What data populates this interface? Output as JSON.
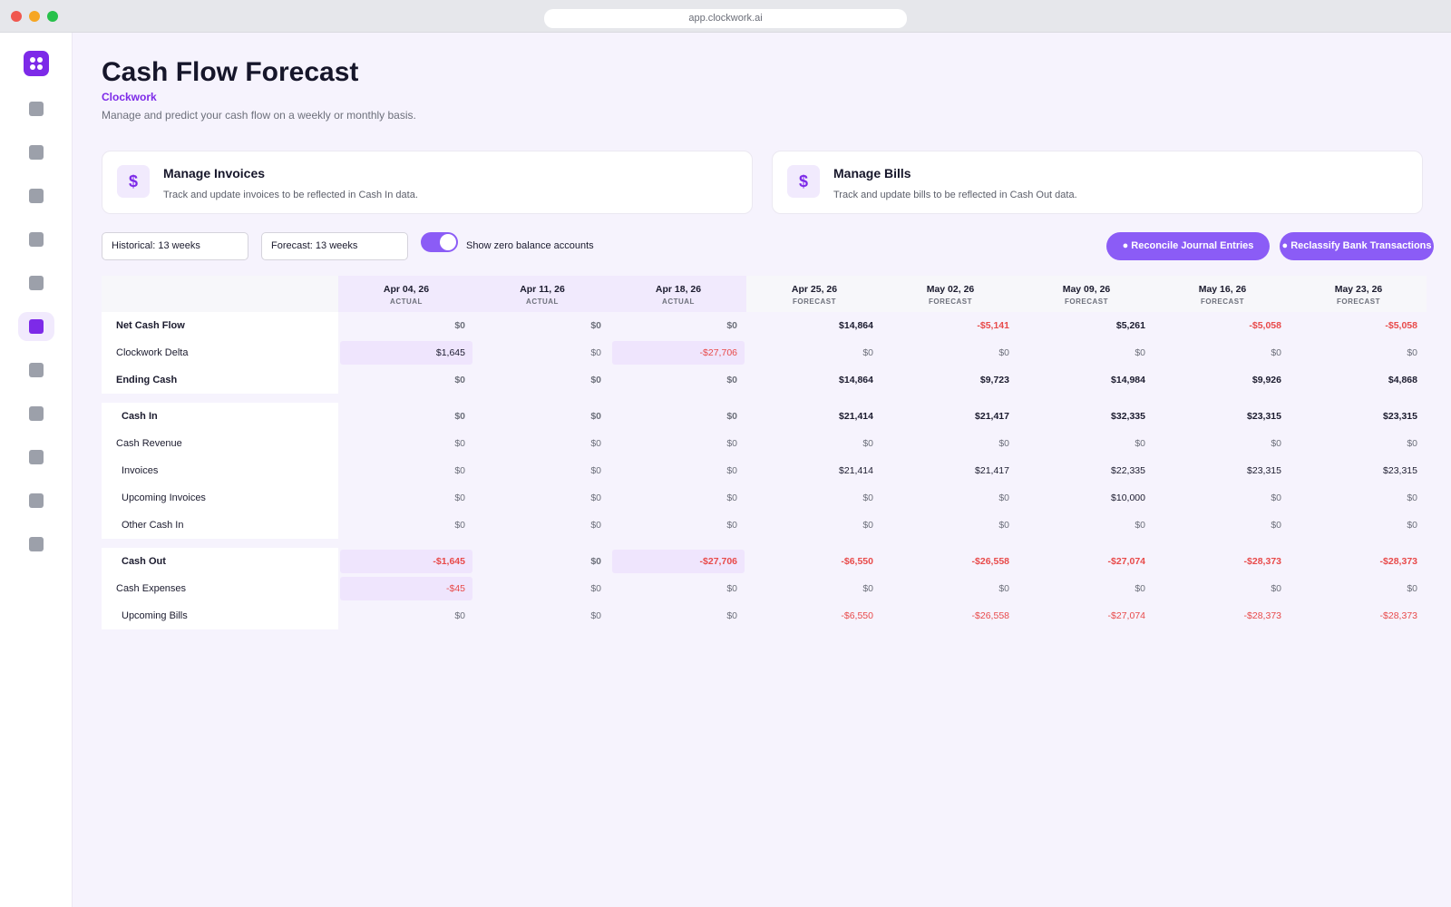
{
  "browser": {
    "url": "app.clockwork.ai"
  },
  "header": {
    "title": "Cash Flow Forecast",
    "org": "Clockwork",
    "subtitle": "Manage and predict your cash flow on a weekly or monthly basis."
  },
  "cards": [
    {
      "icon": "dollar-icon",
      "glyph": "$",
      "title": "Manage Invoices",
      "desc": "Track and update invoices to be reflected in Cash In data."
    },
    {
      "icon": "dollar-icon",
      "glyph": "$",
      "title": "Manage Bills",
      "desc": "Track and update bills to be reflected in Cash Out data."
    }
  ],
  "controls": {
    "historical": "Historical: 13 weeks",
    "forecast": "Forecast: 13 weeks",
    "toggle_label": "Show zero balance accounts",
    "toggle_on": true,
    "reconcile": "● Reconcile Journal Entries",
    "reclassify": "● Reclassify Bank Transactions"
  },
  "colors": {
    "accent": "#7d2ae8",
    "button": "#8b5cf6",
    "negative": "#e84a4a",
    "actual_bg": "#f1eafd"
  },
  "table": {
    "columns": [
      {
        "date": "Apr 04, 26",
        "kind": "ACTUAL"
      },
      {
        "date": "Apr 11, 26",
        "kind": "ACTUAL"
      },
      {
        "date": "Apr 18, 26",
        "kind": "ACTUAL"
      },
      {
        "date": "Apr 25, 26",
        "kind": "FORECAST"
      },
      {
        "date": "May 02, 26",
        "kind": "FORECAST"
      },
      {
        "date": "May 09, 26",
        "kind": "FORECAST"
      },
      {
        "date": "May 16, 26",
        "kind": "FORECAST"
      },
      {
        "date": "May 23, 26",
        "kind": "FORECAST"
      }
    ],
    "rows": [
      {
        "label": "Net Cash Flow",
        "bold": true,
        "values": [
          "$0",
          "$0",
          "$0",
          "$14,864",
          "-$5,141",
          "$5,261",
          "-$5,058",
          "-$5,058"
        ]
      },
      {
        "label": "Clockwork Delta",
        "values": [
          "$1,645",
          "$0",
          "-$27,706",
          "$0",
          "$0",
          "$0",
          "$0",
          "$0"
        ]
      },
      {
        "label": "Ending Cash",
        "bold": true,
        "values": [
          "$0",
          "$0",
          "$0",
          "$14,864",
          "$9,723",
          "$14,984",
          "$9,926",
          "$4,868"
        ]
      },
      {
        "label": "Cash In",
        "bold": true,
        "sub": true,
        "values": [
          "$0",
          "$0",
          "$0",
          "$21,414",
          "$21,417",
          "$32,335",
          "$23,315",
          "$23,315"
        ]
      },
      {
        "label": "Cash Revenue",
        "values": [
          "$0",
          "$0",
          "$0",
          "$0",
          "$0",
          "$0",
          "$0",
          "$0"
        ]
      },
      {
        "label": "Invoices",
        "sub": true,
        "values": [
          "$0",
          "$0",
          "$0",
          "$21,414",
          "$21,417",
          "$22,335",
          "$23,315",
          "$23,315"
        ]
      },
      {
        "label": "Upcoming Invoices",
        "sub": true,
        "values": [
          "$0",
          "$0",
          "$0",
          "$0",
          "$0",
          "$10,000",
          "$0",
          "$0"
        ]
      },
      {
        "label": "Other Cash In",
        "sub": true,
        "values": [
          "$0",
          "$0",
          "$0",
          "$0",
          "$0",
          "$0",
          "$0",
          "$0"
        ]
      },
      {
        "label": "Cash Out",
        "bold": true,
        "sub": true,
        "values": [
          "-$1,645",
          "$0",
          "-$27,706",
          "-$6,550",
          "-$26,558",
          "-$27,074",
          "-$28,373",
          "-$28,373"
        ]
      },
      {
        "label": "Cash Expenses",
        "values": [
          "-$45",
          "$0",
          "$0",
          "$0",
          "$0",
          "$0",
          "$0",
          "$0"
        ]
      },
      {
        "label": "Upcoming Bills",
        "sub": true,
        "values": [
          "$0",
          "$0",
          "$0",
          "-$6,550",
          "-$26,558",
          "-$27,074",
          "-$28,373",
          "-$28,373"
        ]
      }
    ]
  }
}
